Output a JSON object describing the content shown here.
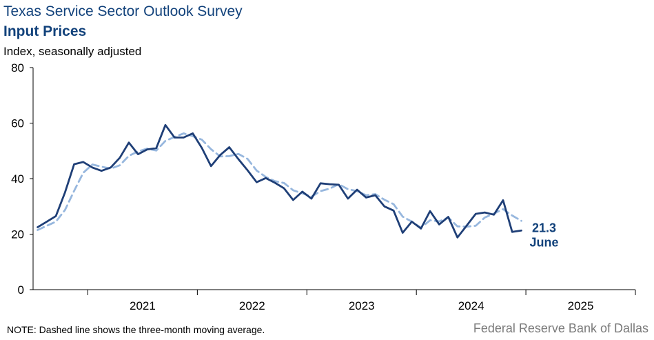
{
  "title": "Texas Service Sector Outlook Survey",
  "subtitle": "Input Prices",
  "ylabel": "Index, seasonally adjusted",
  "note": "NOTE: Dashed line shows the three-month  moving average.",
  "source": "Federal Reserve Bank of Dallas",
  "colors": {
    "index": "#1f3f77",
    "moving_average": "#97b7de",
    "label": "#12427b"
  },
  "chart_data": {
    "type": "line",
    "x_start": "2020-07",
    "x_end": "2025-12",
    "ylim": [
      0,
      80
    ],
    "yticks": [
      "0",
      "20",
      "40",
      "60",
      "80"
    ],
    "year_labels": [
      "2021",
      "2022",
      "2023",
      "2024",
      "2025"
    ],
    "grid": false,
    "series": [
      {
        "style": "solid",
        "values": [
          22.5,
          24.5,
          26.5,
          35.0,
          45.2,
          46.0,
          44.0,
          42.8,
          44.0,
          47.5,
          53.0,
          48.8,
          50.5,
          51.0,
          59.3,
          54.8,
          54.8,
          56.3,
          51.0,
          44.5,
          48.5,
          51.3,
          47.0,
          43.0,
          38.7,
          40.2,
          38.5,
          36.5,
          32.3,
          35.3,
          32.8,
          38.3,
          38.0,
          37.8,
          32.8,
          36.0,
          33.2,
          34.0,
          30.0,
          28.5,
          20.5,
          24.5,
          22.0,
          28.3,
          23.5,
          26.2,
          18.8,
          23.0,
          27.3,
          27.8,
          27.0,
          32.2,
          20.8,
          21.3
        ]
      },
      {
        "style": "dashed",
        "values": [
          21.5,
          23.0,
          24.5,
          28.7,
          35.6,
          42.1,
          45.1,
          44.3,
          43.6,
          44.8,
          48.2,
          49.8,
          50.8,
          50.1,
          53.6,
          55.0,
          56.3,
          55.3,
          54.0,
          50.6,
          48.0,
          48.1,
          48.9,
          47.1,
          42.9,
          40.6,
          39.1,
          38.4,
          35.8,
          34.7,
          33.5,
          35.5,
          36.4,
          38.0,
          36.2,
          35.5,
          34.0,
          34.4,
          32.4,
          30.8,
          26.3,
          24.5,
          22.3,
          25.0,
          24.6,
          26.0,
          22.8,
          22.7,
          23.0,
          26.0,
          27.4,
          29.0,
          26.7,
          24.8
        ]
      }
    ],
    "last_value_label": "21.3",
    "last_month_label": "June"
  }
}
